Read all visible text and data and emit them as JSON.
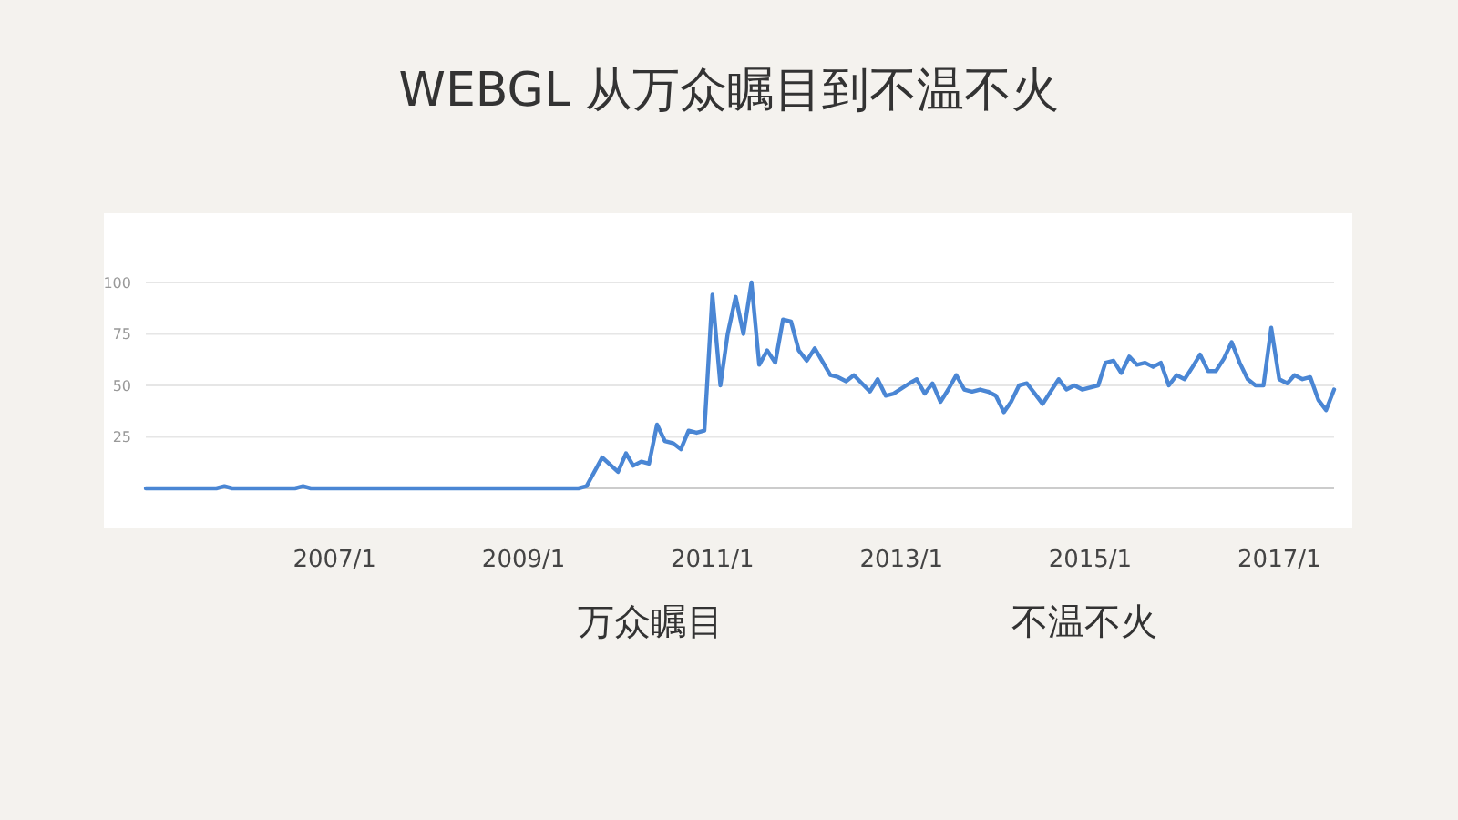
{
  "chart_data": {
    "type": "line",
    "title": "WEBGL 从万众瞩目到不温不火",
    "x": [
      "2005-01",
      "2005-10",
      "2005-11",
      "2005-12",
      "2006-08",
      "2006-09",
      "2006-10",
      "2009-08",
      "2009-09",
      "2009-11",
      "2010-01",
      "2010-02",
      "2010-03",
      "2010-04",
      "2010-05",
      "2010-06",
      "2010-07",
      "2010-08",
      "2010-09",
      "2010-10",
      "2010-11",
      "2010-12",
      "2011-01",
      "2011-02",
      "2011-03",
      "2011-04",
      "2011-05",
      "2011-06",
      "2011-07",
      "2011-08",
      "2011-09",
      "2011-10",
      "2011-11",
      "2011-12",
      "2012-01",
      "2012-02",
      "2012-04",
      "2012-05",
      "2012-06",
      "2012-07",
      "2012-09",
      "2012-10",
      "2012-11",
      "2012-12",
      "2013-02",
      "2013-03",
      "2013-04",
      "2013-05",
      "2013-06",
      "2013-07",
      "2013-08",
      "2013-09",
      "2013-10",
      "2013-11",
      "2013-12",
      "2014-01",
      "2014-02",
      "2014-03",
      "2014-04",
      "2014-05",
      "2014-06",
      "2014-07",
      "2014-08",
      "2014-09",
      "2014-10",
      "2014-11",
      "2014-12",
      "2015-02",
      "2015-03",
      "2015-04",
      "2015-05",
      "2015-06",
      "2015-07",
      "2015-08",
      "2015-09",
      "2015-10",
      "2015-11",
      "2015-12",
      "2016-01",
      "2016-02",
      "2016-03",
      "2016-04",
      "2016-05",
      "2016-06",
      "2016-07",
      "2016-08",
      "2016-09",
      "2016-10",
      "2016-11",
      "2016-12",
      "2017-01",
      "2017-02",
      "2017-03",
      "2017-04",
      "2017-05",
      "2017-06",
      "2017-07",
      "2017-08"
    ],
    "series": [
      {
        "color": "#4a86d4",
        "values": [
          0,
          0,
          1,
          0,
          0,
          1,
          0,
          0,
          1,
          15,
          8,
          17,
          11,
          13,
          12,
          31,
          23,
          22,
          19,
          28,
          27,
          28,
          94,
          50,
          75,
          93,
          75,
          100,
          60,
          67,
          61,
          82,
          81,
          67,
          62,
          68,
          55,
          54,
          52,
          55,
          47,
          53,
          45,
          46,
          51,
          53,
          46,
          51,
          42,
          48,
          55,
          48,
          47,
          48,
          47,
          45,
          37,
          42,
          50,
          51,
          46,
          41,
          47,
          53,
          48,
          50,
          48,
          50,
          61,
          62,
          56,
          64,
          60,
          61,
          59,
          61,
          50,
          55,
          53,
          59,
          65,
          57,
          57,
          63,
          71,
          61,
          53,
          50,
          50,
          78,
          53,
          51,
          55,
          53,
          54,
          43,
          38,
          48
        ]
      }
    ],
    "xlim": [
      "2005-01",
      "2017-08"
    ],
    "xticks": [
      {
        "value": "2007-01",
        "label": "2007/1"
      },
      {
        "value": "2009-01",
        "label": "2009/1"
      },
      {
        "value": "2011-01",
        "label": "2011/1"
      },
      {
        "value": "2013-01",
        "label": "2013/1"
      },
      {
        "value": "2015-01",
        "label": "2015/1"
      },
      {
        "value": "2017-01",
        "label": "2017/1"
      }
    ],
    "ylim": [
      0,
      100
    ],
    "yticks": [
      25,
      50,
      75,
      100
    ],
    "grid": "y",
    "annotations": [
      "万众瞩目",
      "不温不火"
    ]
  }
}
